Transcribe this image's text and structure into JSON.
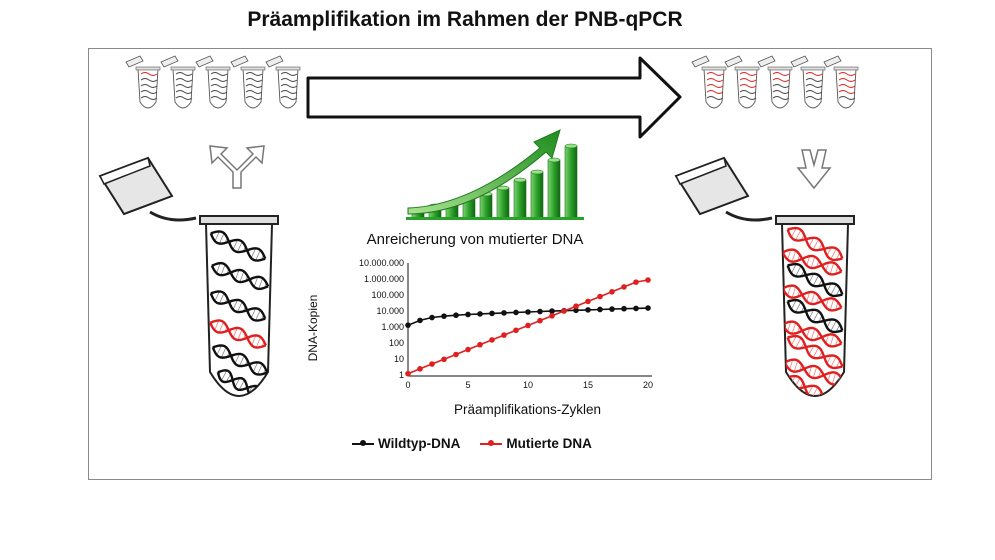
{
  "title": "Präamplifikation im Rahmen der PNB-qPCR",
  "chart_data": {
    "type": "line",
    "title": "Anreicherung von mutierter DNA",
    "xlabel": "Präamplifikations-Zyklen",
    "ylabel": "DNA-Kopien",
    "x_ticks": [
      "0",
      "5",
      "10",
      "15",
      "20"
    ],
    "y_ticks": [
      "1",
      "10",
      "100",
      "1.000",
      "10.000",
      "100.000",
      "1.000.000",
      "10.000.000"
    ],
    "y_scale": "log",
    "xlim": [
      0,
      20
    ],
    "ylim": [
      1,
      10000000
    ],
    "grid": false,
    "legend": "bottom",
    "x": [
      0,
      1,
      2,
      3,
      4,
      5,
      6,
      7,
      8,
      9,
      10,
      11,
      12,
      13,
      14,
      15,
      16,
      17,
      18,
      19,
      20
    ],
    "series": [
      {
        "name": "Wildtyp-DNA",
        "color": "#111111",
        "values": [
          1500,
          3000,
          4500,
          5500,
          6300,
          7000,
          7600,
          8200,
          8800,
          9400,
          10000,
          10700,
          11400,
          12100,
          12800,
          13600,
          14400,
          15200,
          16000,
          16800,
          17600
        ]
      },
      {
        "name": "Mutierte DNA",
        "color": "#e02020",
        "values": [
          1.4,
          2.8,
          5.6,
          11,
          22,
          45,
          90,
          180,
          360,
          720,
          1440,
          2880,
          5760,
          11500,
          23000,
          46000,
          92000,
          184000,
          368000,
          736000,
          1000000
        ]
      }
    ]
  },
  "colors": {
    "wildtype": "#111111",
    "mutant": "#e02020",
    "growth": "#2aa12a"
  }
}
